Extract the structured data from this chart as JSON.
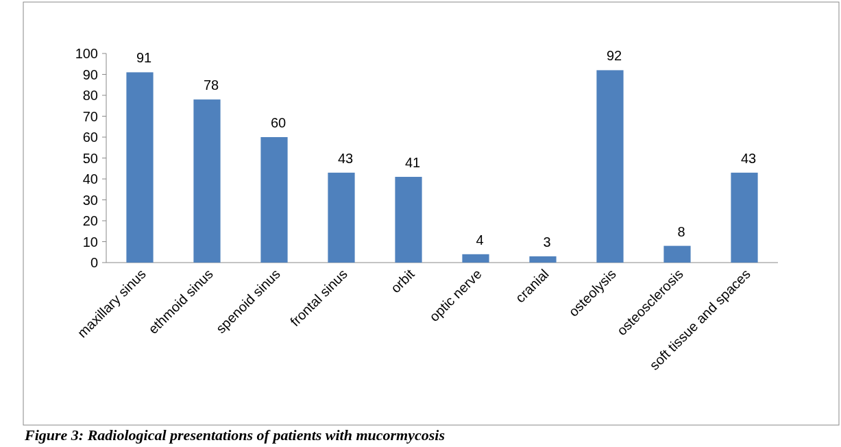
{
  "chart_data": {
    "type": "bar",
    "categories": [
      "maxillary sinus",
      "ethmoid sinus",
      "spenoid sinus",
      "frontal sinus",
      "orbit",
      "optic nerve",
      "cranial",
      "osteolysis",
      "osteosclerosis",
      "soft tissue and spaces"
    ],
    "values": [
      91,
      78,
      60,
      43,
      41,
      4,
      3,
      92,
      8,
      43
    ],
    "color": "#4f81bd",
    "ylim": [
      0,
      100
    ],
    "yticks": [
      0,
      10,
      20,
      30,
      40,
      50,
      60,
      70,
      80,
      90,
      100
    ],
    "data_labels": true,
    "annotations": [
      "Figure 3: Radiological presentations of patients with mucormycosis"
    ]
  }
}
